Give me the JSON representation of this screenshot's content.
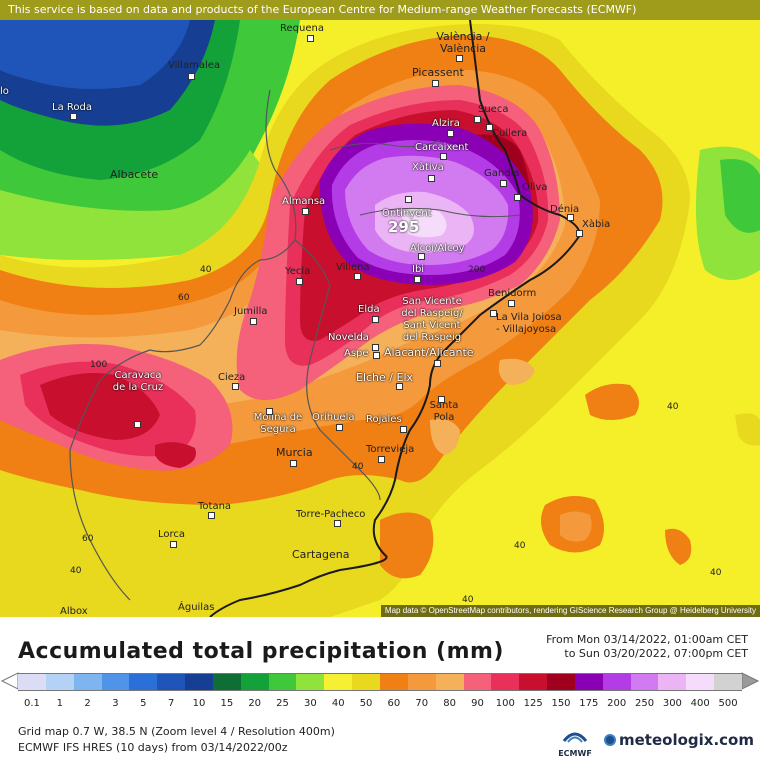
{
  "notice": "This service is based on data and products of the European Centre for Medium-range Weather Forecasts (ECMWF)",
  "attribution": "Map data © OpenStreetMap contributors, rendering GIScience Research Group @ Heidelberg University",
  "peak_value": "295",
  "contour_labels": [
    "40",
    "60",
    "100",
    "200",
    "40",
    "40",
    "40",
    "60",
    "40",
    "40",
    "40"
  ],
  "cities": {
    "requena": "Requena",
    "valencia": "València / València",
    "villamalea": "Villamalea",
    "lo": "lo",
    "la_roda": "La Roda",
    "picassent": "Picassent",
    "sueca": "Sueca",
    "alzira": "Alzira",
    "cullera": "Cullera",
    "carcaixent": "Carcaixent",
    "albacete": "Albacete",
    "xativa": "Xàtiva",
    "gandia": "Gandia",
    "oliva": "Oliva",
    "almansa": "Almansa",
    "ontinyent": "Ontinyent",
    "denia": "Dénia",
    "xabia": "Xàbia",
    "alcoi": "Alcoi/Alcoy",
    "yecla": "Yecla",
    "villena": "Villena",
    "ibi": "Ibi",
    "benidorm": "Benidorm",
    "jumilla": "Jumilla",
    "elda": "Elda",
    "san_vicente": "San Vicente del Raspeig/ Sant Vicent del Raspeig",
    "la_vila": "La Vila Joiosa - Villajoyosa",
    "novelda": "Novelda",
    "aspe": "Aspe",
    "alacant": "Alacant/Alicante",
    "cieza": "Cieza",
    "caravaca": "Caravaca de la Cruz",
    "elche": "Elche / Elx",
    "molina": "Molina de Segura",
    "orihuela": "Orihuela",
    "rojales": "Rojales",
    "santa_pola": "Santa Pola",
    "murcia": "Murcia",
    "torrevieja": "Torrevieja",
    "totana": "Totana",
    "torre_pacheco": "Torre-Pacheco",
    "lorca": "Lorca",
    "cartagena": "Cartagena",
    "aguilas": "Águilas",
    "albox": "Albox"
  },
  "legend": {
    "title": "Accumulated total precipitation (mm)",
    "from": "From Mon 03/14/2022, 01:00am CET",
    "to": "to Sun 03/20/2022, 07:00pm CET",
    "ticks": [
      "0.1",
      "1",
      "2",
      "3",
      "5",
      "7",
      "10",
      "15",
      "20",
      "25",
      "30",
      "40",
      "50",
      "60",
      "70",
      "80",
      "90",
      "100",
      "125",
      "150",
      "175",
      "200",
      "250",
      "300",
      "400",
      "500"
    ],
    "colors": [
      "#dcdcf5",
      "#b4d2f5",
      "#7eb4f0",
      "#4f94e8",
      "#2a70d8",
      "#1f55b8",
      "#163f94",
      "#0f6e36",
      "#13a13a",
      "#3fc93a",
      "#8fe33a",
      "#f5f032",
      "#e8d81e",
      "#f07f14",
      "#f59a3c",
      "#f5b15a",
      "#f5607a",
      "#e8305a",
      "#c8102e",
      "#a0001e",
      "#8a00b4",
      "#b43ce6",
      "#d27af0",
      "#ebb4f5",
      "#f5dcfa",
      "#d2d2d2"
    ],
    "grid_info": "Grid map 0.7 W, 38.5 N (Zoom level 4 / Resolution 400m)",
    "model_info": "ECMWF IFS HRES (10 days) from 03/14/2022/00z",
    "ecmwf_label": "ECMWF",
    "brand": "meteologix.com"
  }
}
